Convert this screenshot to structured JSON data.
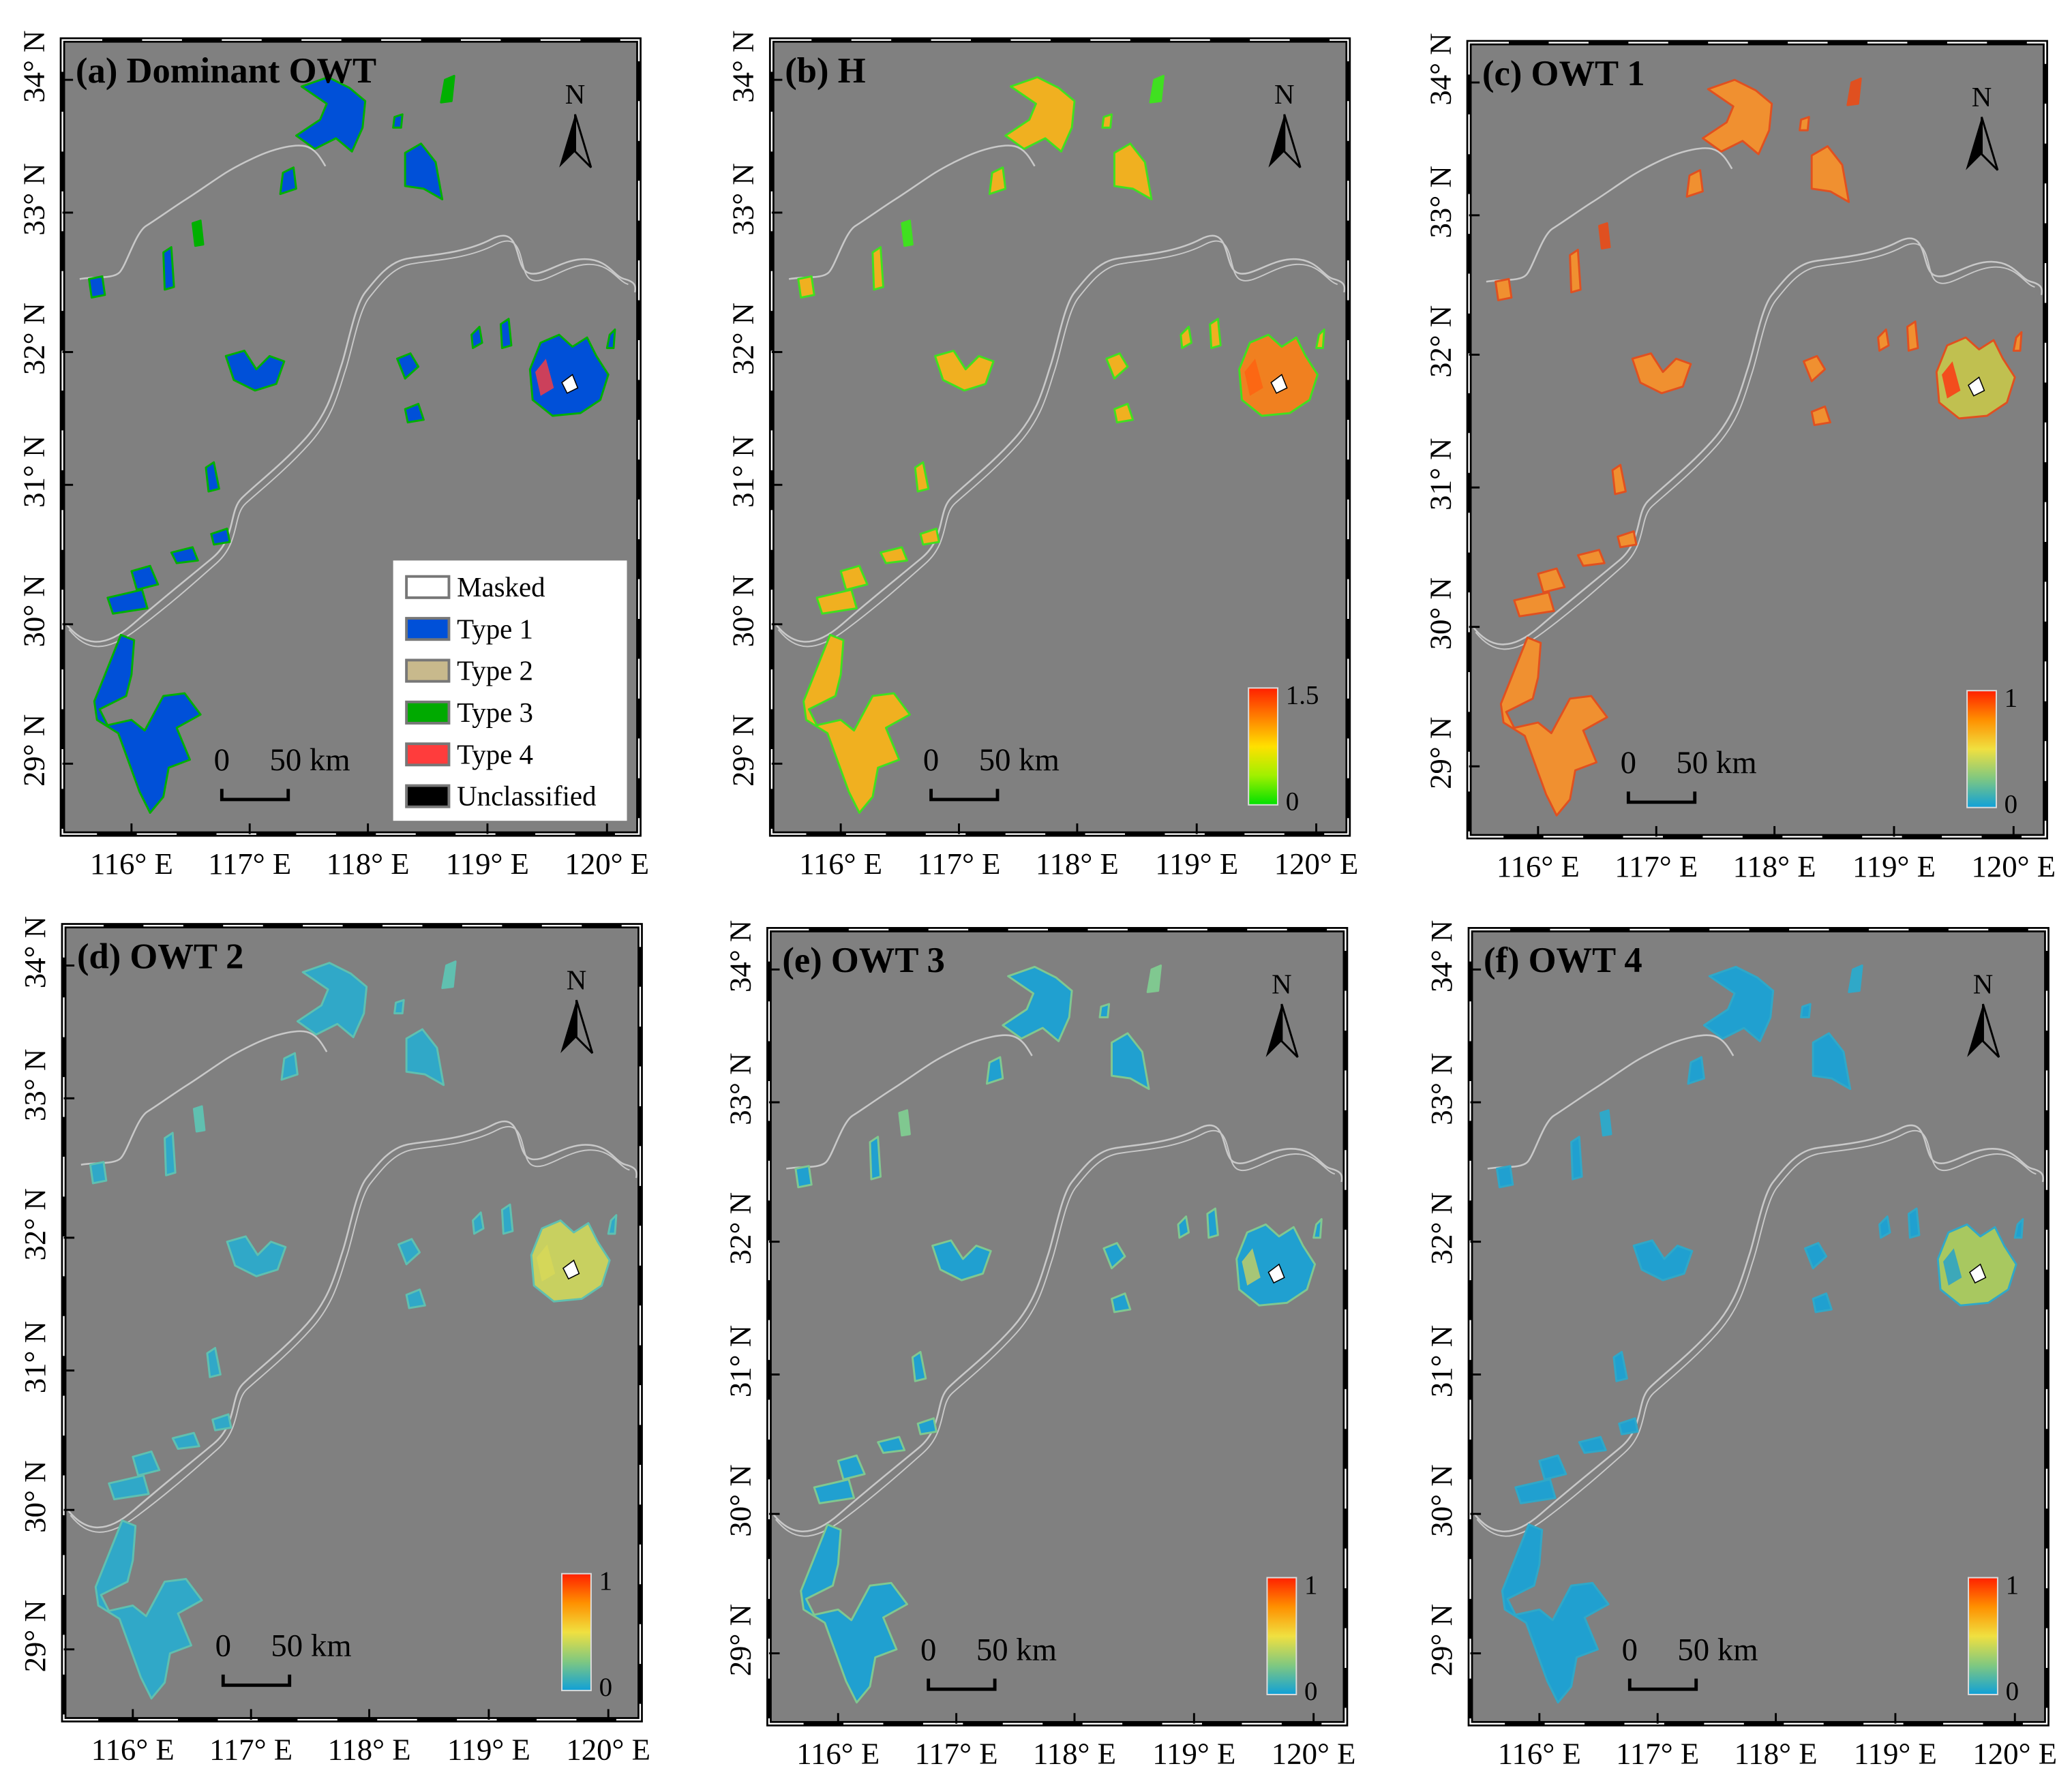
{
  "figure": {
    "lat_labels": [
      "34° N",
      "33° N",
      "32° N",
      "31° N",
      "30° N",
      "29° N"
    ],
    "lon_labels": [
      "116° E",
      "117° E",
      "118° E",
      "119° E",
      "120° E"
    ],
    "north_label": "N",
    "scale_bar": {
      "zero": "0",
      "distance": "50 km"
    },
    "panels": [
      {
        "id": "a",
        "title": "(a) Dominant OWT",
        "colors": {
          "fill": "#0050d8",
          "edge": "#00b000",
          "taihu": "#0050d8",
          "accent": "#ff3c3c"
        },
        "legend": [
          {
            "label": "Masked",
            "color": "#ffffff"
          },
          {
            "label": "Type 1",
            "color": "#0050d8"
          },
          {
            "label": "Type 2",
            "color": "#c8b98c"
          },
          {
            "label": "Type 3",
            "color": "#00aa00"
          },
          {
            "label": "Type 4",
            "color": "#ff3c3c"
          },
          {
            "label": "Unclassified",
            "color": "#000000"
          }
        ]
      },
      {
        "id": "b",
        "title": "(b) H",
        "colors": {
          "fill": "#f0b020",
          "edge": "#40e020",
          "taihu": "#f08020",
          "accent": "#ff6010"
        },
        "colorbar": {
          "max": "1.5",
          "min": "0",
          "stops": [
            "#ff2000",
            "#ff8000",
            "#ffe000",
            "#a0f000",
            "#00e000"
          ]
        }
      },
      {
        "id": "c",
        "title": "(c) OWT 1",
        "colors": {
          "fill": "#f09030",
          "edge": "#e05020",
          "taihu": "#c0c050",
          "accent": "#ff3010"
        },
        "colorbar": {
          "max": "1",
          "min": "0",
          "stops": [
            "#ff2000",
            "#ff9000",
            "#f0e040",
            "#80c880",
            "#10a0d8"
          ]
        }
      },
      {
        "id": "d",
        "title": "(d) OWT 2",
        "colors": {
          "fill": "#30a8c8",
          "edge": "#60c0b0",
          "taihu": "#c8d060",
          "accent": "#d8d858"
        },
        "colorbar": {
          "max": "1",
          "min": "0",
          "stops": [
            "#ff2000",
            "#ff9000",
            "#f0e040",
            "#80c880",
            "#10a0d8"
          ]
        }
      },
      {
        "id": "e",
        "title": "(e) OWT 3",
        "colors": {
          "fill": "#20a0d0",
          "edge": "#80c890",
          "taihu": "#20a0d0",
          "accent": "#c8d060"
        },
        "colorbar": {
          "max": "1",
          "min": "0",
          "stops": [
            "#ff2000",
            "#ff9000",
            "#f0e040",
            "#80c880",
            "#10a0d8"
          ]
        }
      },
      {
        "id": "f",
        "title": "(f) OWT 4",
        "colors": {
          "fill": "#20a0d0",
          "edge": "#30a8c8",
          "taihu": "#a8c860",
          "accent": "#20a0d0"
        },
        "colorbar": {
          "max": "1",
          "min": "0",
          "stops": [
            "#ff2000",
            "#ff9000",
            "#f0e040",
            "#80c880",
            "#10a0d8"
          ]
        }
      }
    ],
    "map_background": "#808080",
    "river_color": "#c8c8c8"
  }
}
